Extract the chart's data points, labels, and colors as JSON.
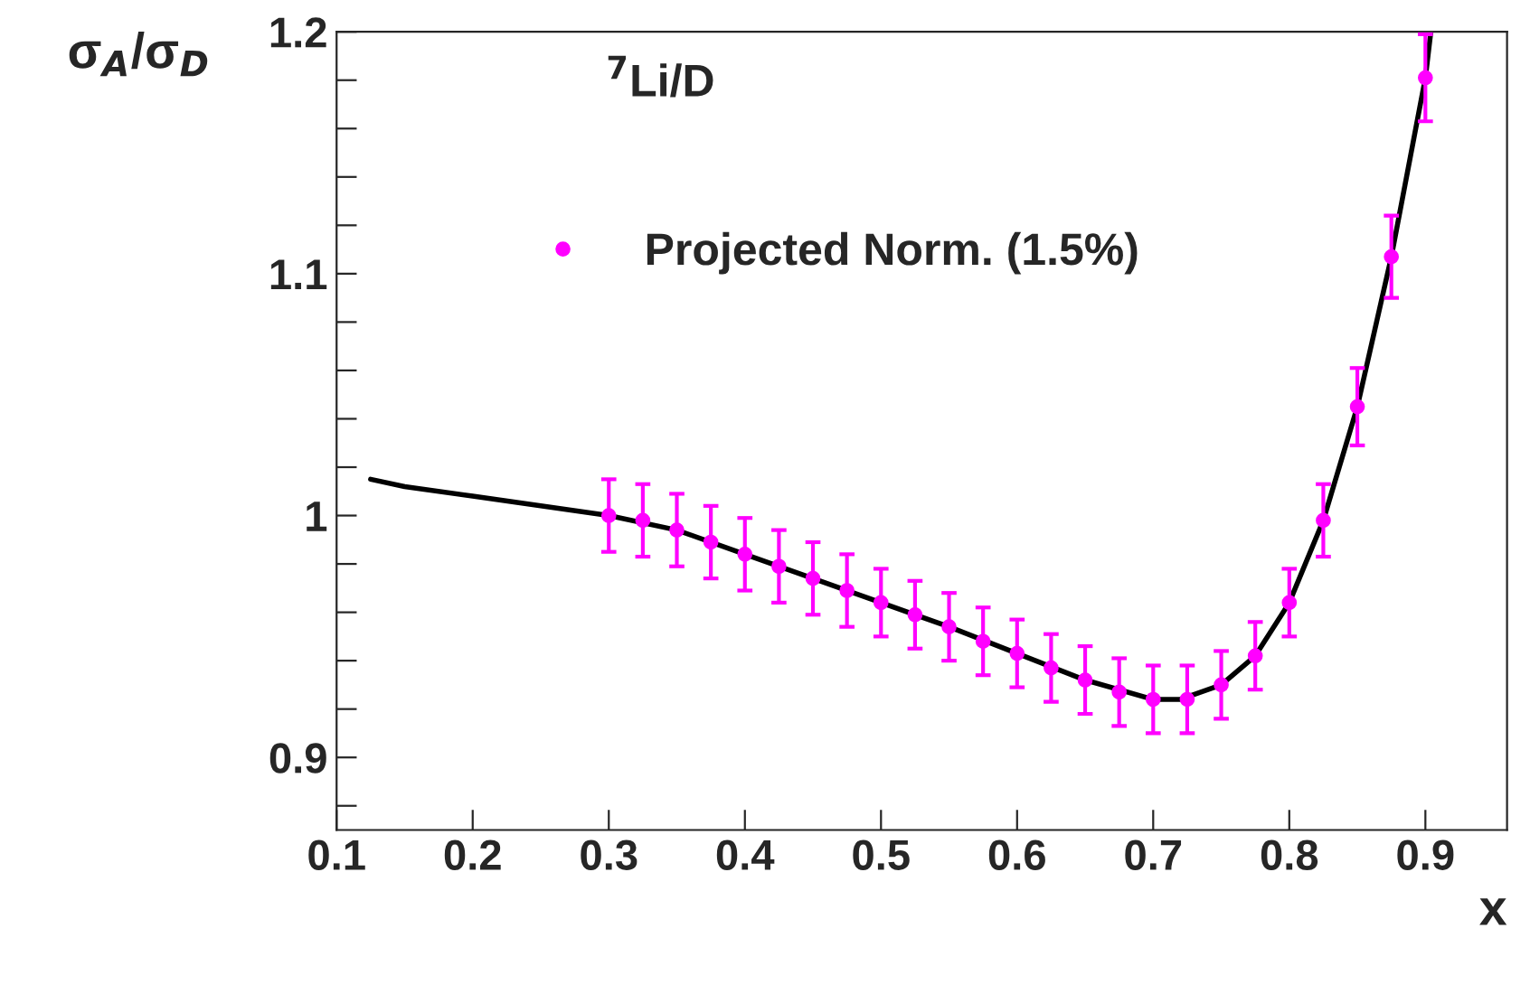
{
  "chart_data": {
    "type": "scatter",
    "xlabel": "x",
    "ylabel": "σ$_{A}$/σ$_{D}$",
    "annotations": [
      "$^{7}$Li/D"
    ],
    "xlim": [
      0.1,
      0.96
    ],
    "ylim": [
      0.87,
      1.2
    ],
    "xticks": [
      0.1,
      0.2,
      0.3,
      0.4,
      0.5,
      0.6,
      0.7,
      0.8,
      0.9
    ],
    "yticks": [
      {
        "value": 0.88,
        "label": null
      },
      0.9,
      {
        "value": 0.92,
        "label": null
      },
      {
        "value": 0.94,
        "label": null
      },
      {
        "value": 0.96,
        "label": null
      },
      {
        "value": 0.98,
        "label": null
      },
      1,
      {
        "value": 1.02,
        "label": null
      },
      {
        "value": 1.04,
        "label": null
      },
      {
        "value": 1.06,
        "label": null
      },
      {
        "value": 1.08,
        "label": null
      },
      1.1,
      {
        "value": 1.12,
        "label": null
      },
      {
        "value": 1.14,
        "label": null
      },
      {
        "value": 1.16,
        "label": null
      },
      {
        "value": 1.18,
        "label": null
      },
      1.2
    ],
    "grid": false,
    "legend": "top left",
    "series": [
      {
        "type": "line",
        "color": "#000000",
        "x": [
          0.125,
          0.15,
          0.2,
          0.25,
          0.3,
          0.35,
          0.4,
          0.45,
          0.5,
          0.55,
          0.6,
          0.65,
          0.7,
          0.72,
          0.75,
          0.775,
          0.8,
          0.825,
          0.85,
          0.875,
          0.9,
          0.904
        ],
        "values": [
          1.015,
          1.012,
          1.008,
          1.004,
          1.0,
          0.994,
          0.984,
          0.974,
          0.964,
          0.954,
          0.943,
          0.932,
          0.924,
          0.924,
          0.93,
          0.942,
          0.964,
          0.998,
          1.045,
          1.107,
          1.181,
          1.2
        ]
      },
      {
        "name": "Projected Norm. (1.5%)",
        "marker": "circle",
        "color": "#ff00ff",
        "x": [
          0.3,
          0.325,
          0.35,
          0.375,
          0.4,
          0.425,
          0.45,
          0.475,
          0.5,
          0.525,
          0.55,
          0.575,
          0.6,
          0.625,
          0.65,
          0.675,
          0.7,
          0.725,
          0.75,
          0.775,
          0.8,
          0.825,
          0.85,
          0.875,
          0.9
        ],
        "values": [
          1.0,
          0.998,
          0.994,
          0.989,
          0.984,
          0.979,
          0.974,
          0.969,
          0.964,
          0.959,
          0.954,
          0.948,
          0.943,
          0.937,
          0.932,
          0.927,
          0.924,
          0.924,
          0.93,
          0.942,
          0.964,
          0.998,
          1.045,
          1.107,
          1.181
        ],
        "errors": [
          0.015,
          0.015,
          0.015,
          0.015,
          0.015,
          0.015,
          0.015,
          0.015,
          0.014,
          0.014,
          0.014,
          0.014,
          0.014,
          0.014,
          0.014,
          0.014,
          0.014,
          0.014,
          0.014,
          0.014,
          0.014,
          0.015,
          0.016,
          0.017,
          0.018
        ]
      }
    ]
  }
}
